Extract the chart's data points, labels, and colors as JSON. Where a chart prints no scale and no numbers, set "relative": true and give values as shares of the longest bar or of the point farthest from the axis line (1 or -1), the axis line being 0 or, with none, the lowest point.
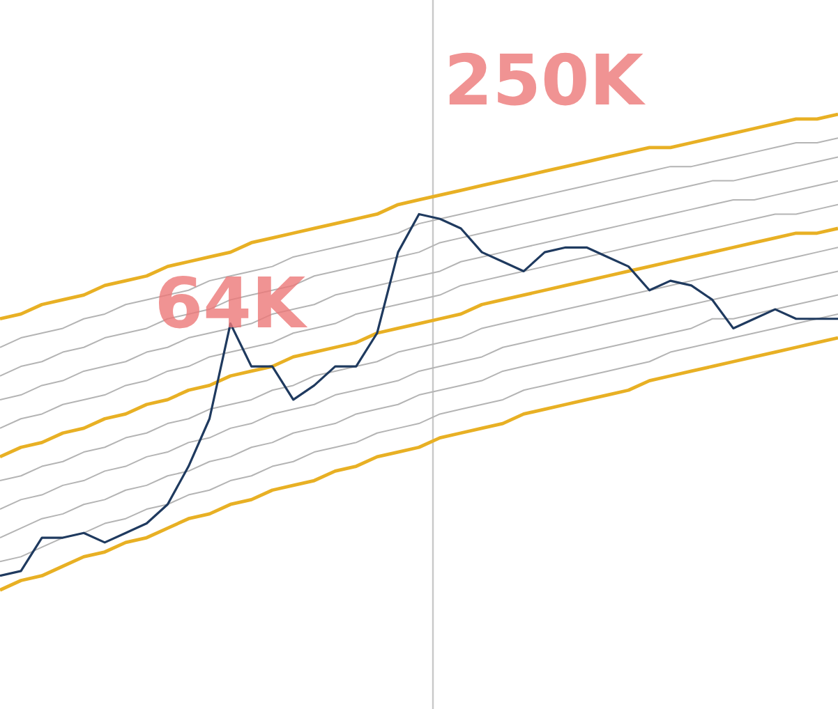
{
  "chart_data": {
    "type": "line",
    "relative": true,
    "legend": false,
    "marker": "none",
    "categories": [
      null,
      null,
      null,
      null,
      null,
      null,
      null,
      null,
      null,
      null,
      null,
      null,
      null,
      null,
      null,
      null,
      null,
      null,
      null,
      null,
      null,
      null,
      null,
      null,
      null,
      null,
      null,
      null,
      null,
      null,
      null,
      null,
      null,
      null,
      null,
      null,
      null,
      null,
      null,
      null,
      null
    ],
    "annotations": [
      "64K",
      "250K"
    ],
    "series": [
      {
        "color": "#1f3a5f",
        "values": [
          0.03,
          0.04,
          0.11,
          0.11,
          0.12,
          0.1,
          0.12,
          0.14,
          0.18,
          0.26,
          0.36,
          0.56,
          0.47,
          0.47,
          0.4,
          0.43,
          0.47,
          0.47,
          0.54,
          0.71,
          0.79,
          0.78,
          0.76,
          0.71,
          0.69,
          0.67,
          0.71,
          0.72,
          0.72,
          0.7,
          0.68,
          0.63,
          0.65,
          0.64,
          0.61,
          0.55,
          0.57,
          0.59,
          0.57,
          0.57,
          0.57
        ]
      },
      {
        "color": "#e8b024",
        "values": [
          0.57,
          0.58,
          0.6,
          0.61,
          0.62,
          0.64,
          0.65,
          0.66,
          0.68,
          0.69,
          0.7,
          0.71,
          0.73,
          0.74,
          0.75,
          0.76,
          0.77,
          0.78,
          0.79,
          0.81,
          0.82,
          0.83,
          0.84,
          0.85,
          0.86,
          0.87,
          0.88,
          0.89,
          0.9,
          0.91,
          0.92,
          0.93,
          0.93,
          0.94,
          0.95,
          0.96,
          0.97,
          0.98,
          0.99,
          0.99,
          1
        ]
      },
      {
        "color": "#e8b024",
        "values": [
          0.28,
          0.3,
          0.31,
          0.33,
          0.34,
          0.36,
          0.37,
          0.39,
          0.4,
          0.42,
          0.43,
          0.45,
          0.46,
          0.47,
          0.49,
          0.5,
          0.51,
          0.52,
          0.54,
          0.55,
          0.56,
          0.57,
          0.58,
          0.6,
          0.61,
          0.62,
          0.63,
          0.64,
          0.65,
          0.66,
          0.67,
          0.68,
          0.69,
          0.7,
          0.71,
          0.72,
          0.73,
          0.74,
          0.75,
          0.75,
          0.76
        ]
      },
      {
        "color": "#e8b024",
        "values": [
          0,
          0.02,
          0.03,
          0.05,
          0.07,
          0.08,
          0.1,
          0.11,
          0.13,
          0.15,
          0.16,
          0.18,
          0.19,
          0.21,
          0.22,
          0.23,
          0.25,
          0.26,
          0.28,
          0.29,
          0.3,
          0.32,
          0.33,
          0.34,
          0.35,
          0.37,
          0.38,
          0.39,
          0.4,
          0.41,
          0.42,
          0.44,
          0.45,
          0.46,
          0.47,
          0.48,
          0.49,
          0.5,
          0.51,
          0.52,
          0.53
        ]
      },
      {
        "color": "#b4b4b4",
        "values": [
          0.34,
          0.36,
          0.37,
          0.39,
          0.4,
          0.41,
          0.43,
          0.44,
          0.46,
          0.47,
          0.49,
          0.5,
          0.51,
          0.52,
          0.54,
          0.55,
          0.56,
          0.58,
          0.59,
          0.6,
          0.61,
          0.62,
          0.64,
          0.65,
          0.66,
          0.67,
          0.68,
          0.69,
          0.7,
          0.71,
          0.72,
          0.73,
          0.74,
          0.75,
          0.76,
          0.77,
          0.78,
          0.79,
          0.79,
          0.8,
          0.81
        ]
      },
      {
        "color": "#b4b4b4",
        "values": [
          0.4,
          0.41,
          0.43,
          0.44,
          0.46,
          0.47,
          0.48,
          0.5,
          0.51,
          0.53,
          0.54,
          0.55,
          0.56,
          0.58,
          0.59,
          0.6,
          0.62,
          0.63,
          0.64,
          0.65,
          0.66,
          0.67,
          0.69,
          0.7,
          0.71,
          0.72,
          0.73,
          0.74,
          0.75,
          0.76,
          0.77,
          0.78,
          0.79,
          0.8,
          0.81,
          0.82,
          0.82,
          0.83,
          0.84,
          0.85,
          0.86
        ]
      },
      {
        "color": "#b4b4b4",
        "values": [
          0.45,
          0.47,
          0.48,
          0.5,
          0.51,
          0.53,
          0.54,
          0.55,
          0.57,
          0.58,
          0.59,
          0.61,
          0.62,
          0.63,
          0.64,
          0.66,
          0.67,
          0.68,
          0.69,
          0.7,
          0.71,
          0.73,
          0.74,
          0.75,
          0.76,
          0.77,
          0.78,
          0.79,
          0.8,
          0.81,
          0.82,
          0.83,
          0.84,
          0.85,
          0.86,
          0.86,
          0.87,
          0.88,
          0.89,
          0.9,
          0.91
        ]
      },
      {
        "color": "#b4b4b4",
        "values": [
          0.51,
          0.53,
          0.54,
          0.55,
          0.57,
          0.58,
          0.6,
          0.61,
          0.62,
          0.63,
          0.65,
          0.66,
          0.67,
          0.68,
          0.7,
          0.71,
          0.72,
          0.73,
          0.74,
          0.75,
          0.77,
          0.78,
          0.79,
          0.8,
          0.81,
          0.82,
          0.83,
          0.84,
          0.85,
          0.86,
          0.87,
          0.88,
          0.89,
          0.89,
          0.9,
          0.91,
          0.92,
          0.93,
          0.94,
          0.94,
          0.95
        ]
      },
      {
        "color": "#b4b4b4",
        "values": [
          0.06,
          0.07,
          0.09,
          0.11,
          0.12,
          0.14,
          0.15,
          0.17,
          0.18,
          0.2,
          0.21,
          0.23,
          0.24,
          0.26,
          0.27,
          0.29,
          0.3,
          0.31,
          0.33,
          0.34,
          0.35,
          0.37,
          0.38,
          0.39,
          0.4,
          0.42,
          0.43,
          0.44,
          0.45,
          0.46,
          0.47,
          0.48,
          0.5,
          0.51,
          0.52,
          0.53,
          0.54,
          0.55,
          0.56,
          0.57,
          0.58
        ]
      },
      {
        "color": "#b4b4b4",
        "values": [
          0.11,
          0.13,
          0.15,
          0.16,
          0.18,
          0.19,
          0.21,
          0.22,
          0.24,
          0.25,
          0.27,
          0.28,
          0.3,
          0.31,
          0.33,
          0.34,
          0.35,
          0.37,
          0.38,
          0.39,
          0.41,
          0.42,
          0.43,
          0.44,
          0.46,
          0.47,
          0.48,
          0.49,
          0.5,
          0.51,
          0.52,
          0.53,
          0.54,
          0.55,
          0.57,
          0.57,
          0.58,
          0.59,
          0.6,
          0.61,
          0.62
        ]
      },
      {
        "color": "#b4b4b4",
        "values": [
          0.17,
          0.19,
          0.2,
          0.22,
          0.23,
          0.25,
          0.26,
          0.28,
          0.29,
          0.31,
          0.32,
          0.34,
          0.35,
          0.37,
          0.38,
          0.39,
          0.41,
          0.42,
          0.43,
          0.44,
          0.46,
          0.47,
          0.48,
          0.49,
          0.51,
          0.52,
          0.53,
          0.54,
          0.55,
          0.56,
          0.57,
          0.58,
          0.59,
          0.6,
          0.61,
          0.62,
          0.63,
          0.64,
          0.65,
          0.66,
          0.67
        ]
      },
      {
        "color": "#b4b4b4",
        "values": [
          0.23,
          0.24,
          0.26,
          0.27,
          0.29,
          0.3,
          0.32,
          0.33,
          0.35,
          0.36,
          0.38,
          0.39,
          0.4,
          0.42,
          0.43,
          0.45,
          0.46,
          0.47,
          0.48,
          0.5,
          0.51,
          0.52,
          0.53,
          0.55,
          0.56,
          0.57,
          0.58,
          0.59,
          0.6,
          0.61,
          0.62,
          0.63,
          0.64,
          0.65,
          0.66,
          0.67,
          0.68,
          0.69,
          0.7,
          0.71,
          0.72
        ]
      }
    ]
  }
}
